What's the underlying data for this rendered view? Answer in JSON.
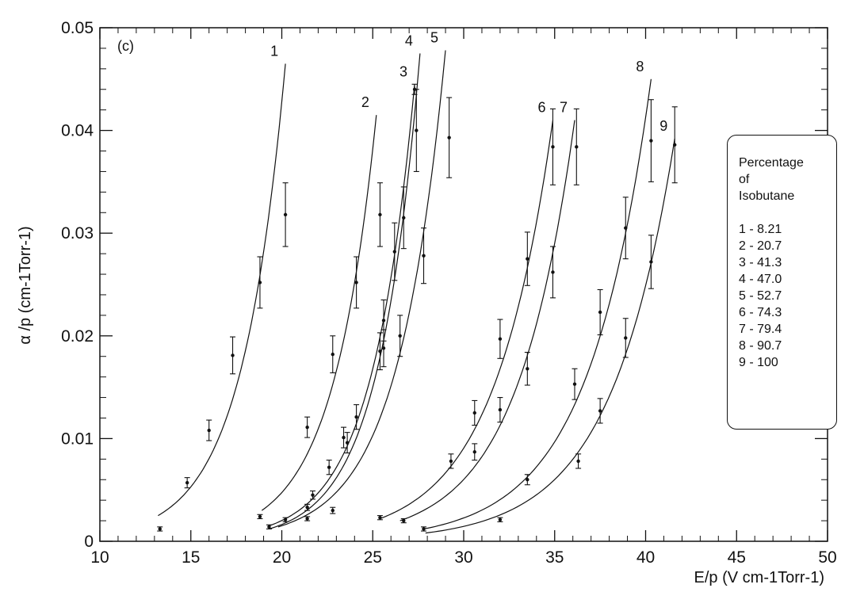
{
  "chart_data": {
    "type": "scatter",
    "panel_label": "(c)",
    "xlabel": "E/p   (V cm-1Torr-1)",
    "ylabel": "α /p  (cm-1Torr-1)",
    "xlim": [
      10,
      50
    ],
    "ylim": [
      0,
      0.05
    ],
    "x_ticks": [
      "10",
      "15",
      "20",
      "25",
      "30",
      "35",
      "40",
      "45",
      "50"
    ],
    "y_ticks": [
      "0",
      "0.01",
      "0.02",
      "0.03",
      "0.04",
      "0.05"
    ],
    "grid": false,
    "legend": {
      "placement": "right",
      "title_lines": [
        "Percentage",
        "of",
        "Isobutane"
      ],
      "entries": [
        "1 - 8.21",
        "2 - 20.7",
        "3 - 41.3",
        "4 - 47.0",
        "5 - 52.7",
        "6 - 74.3",
        "7 - 79.4",
        "8 - 90.7",
        "9 - 100"
      ]
    },
    "series": [
      {
        "name": "1",
        "isobutane_percent": 8.21,
        "curve_x": [
          13.2,
          20.2
        ],
        "curve_y": [
          0.0025,
          0.0465
        ],
        "points": [
          [
            13.3,
            0.0012,
            0.0002
          ],
          [
            14.8,
            0.0057,
            0.0005
          ],
          [
            16.0,
            0.0108,
            0.001
          ],
          [
            17.3,
            0.0181,
            0.0018
          ],
          [
            18.8,
            0.0252,
            0.0025
          ],
          [
            20.2,
            0.0318,
            0.0031
          ]
        ]
      },
      {
        "name": "2",
        "isobutane_percent": 20.7,
        "curve_x": [
          18.9,
          25.2
        ],
        "curve_y": [
          0.003,
          0.0415
        ],
        "points": [
          [
            18.8,
            0.0024,
            0.0002
          ],
          [
            21.4,
            0.0111,
            0.001
          ],
          [
            22.8,
            0.0182,
            0.0018
          ],
          [
            24.1,
            0.0252,
            0.0025
          ],
          [
            25.4,
            0.0318,
            0.0031
          ]
        ]
      },
      {
        "name": "3",
        "isobutane_percent": 41.3,
        "curve_x": [
          19.3,
          27.3
        ],
        "curve_y": [
          0.0015,
          0.0445
        ],
        "points": [
          [
            20.2,
            0.0021,
            0.0002
          ],
          [
            21.7,
            0.0045,
            0.0004
          ],
          [
            23.4,
            0.0101,
            0.001
          ],
          [
            25.6,
            0.0215,
            0.002
          ],
          [
            26.7,
            0.0315,
            0.003
          ],
          [
            27.3,
            0.044,
            0.0005
          ]
        ]
      },
      {
        "name": "4",
        "isobutane_percent": 47.0,
        "curve_x": [
          19.3,
          27.6
        ],
        "curve_y": [
          0.0012,
          0.0475
        ],
        "points": [
          [
            19.3,
            0.0014,
            0.0002
          ],
          [
            21.4,
            0.0033,
            0.0003
          ],
          [
            22.6,
            0.0072,
            0.0007
          ],
          [
            24.1,
            0.0121,
            0.0012
          ],
          [
            25.4,
            0.0185,
            0.0018
          ],
          [
            26.2,
            0.0282,
            0.0028
          ],
          [
            27.4,
            0.04,
            0.004
          ]
        ]
      },
      {
        "name": "5",
        "isobutane_percent": 52.7,
        "curve_x": [
          19.8,
          29.0
        ],
        "curve_y": [
          0.0014,
          0.0478
        ],
        "points": [
          [
            21.4,
            0.0022,
            0.0002
          ],
          [
            22.8,
            0.003,
            0.0003
          ],
          [
            23.6,
            0.0096,
            0.001
          ],
          [
            25.6,
            0.0188,
            0.0018
          ],
          [
            26.5,
            0.02,
            0.002
          ],
          [
            27.8,
            0.0278,
            0.0027
          ],
          [
            29.2,
            0.0393,
            0.0039
          ]
        ]
      },
      {
        "name": "6",
        "isobutane_percent": 74.3,
        "curve_x": [
          25.4,
          34.9
        ],
        "curve_y": [
          0.0022,
          0.041
        ],
        "points": [
          [
            25.4,
            0.0023,
            0.0002
          ],
          [
            29.3,
            0.0078,
            0.0007
          ],
          [
            30.6,
            0.0125,
            0.0012
          ],
          [
            32.0,
            0.0197,
            0.0019
          ],
          [
            33.5,
            0.0275,
            0.0026
          ],
          [
            34.9,
            0.0384,
            0.0037
          ]
        ]
      },
      {
        "name": "7",
        "isobutane_percent": 79.4,
        "curve_x": [
          26.5,
          36.1
        ],
        "curve_y": [
          0.002,
          0.041
        ],
        "points": [
          [
            26.7,
            0.002,
            0.0002
          ],
          [
            30.6,
            0.0087,
            0.0008
          ],
          [
            32.0,
            0.0128,
            0.0012
          ],
          [
            33.5,
            0.0168,
            0.0016
          ],
          [
            34.9,
            0.0262,
            0.0025
          ],
          [
            36.2,
            0.0384,
            0.0037
          ]
        ]
      },
      {
        "name": "8",
        "isobutane_percent": 90.7,
        "curve_x": [
          27.8,
          40.3
        ],
        "curve_y": [
          0.0012,
          0.045
        ],
        "points": [
          [
            27.8,
            0.0012,
            0.0002
          ],
          [
            33.5,
            0.006,
            0.0005
          ],
          [
            36.1,
            0.0153,
            0.0015
          ],
          [
            37.5,
            0.0223,
            0.0022
          ],
          [
            38.9,
            0.0305,
            0.003
          ],
          [
            40.3,
            0.039,
            0.004
          ]
        ]
      },
      {
        "name": "9",
        "isobutane_percent": 100,
        "curve_x": [
          27.9,
          41.6
        ],
        "curve_y": [
          0.0008,
          0.0392
        ],
        "points": [
          [
            32.0,
            0.0021,
            0.0002
          ],
          [
            36.3,
            0.0078,
            0.0007
          ],
          [
            37.5,
            0.0127,
            0.0012
          ],
          [
            38.9,
            0.0198,
            0.0019
          ],
          [
            40.3,
            0.0272,
            0.0026
          ],
          [
            41.6,
            0.0386,
            0.0037
          ]
        ]
      }
    ]
  }
}
